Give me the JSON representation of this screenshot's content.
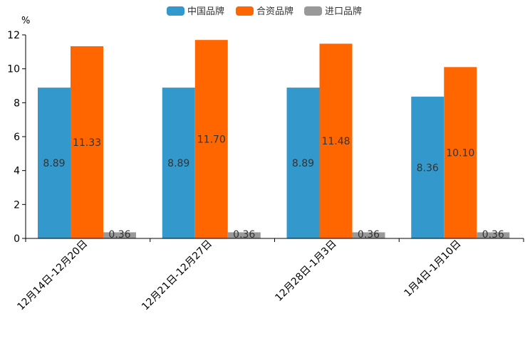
{
  "chart_data": {
    "type": "bar",
    "unit": "%",
    "categories": [
      "12月14日-12月20日",
      "12月21日-12月27日",
      "12月28日-1月3日",
      "1月4日-1月10日"
    ],
    "series": [
      {
        "name": "中国品牌",
        "color": "#3399cc",
        "values": [
          8.89,
          8.89,
          8.89,
          8.36
        ],
        "labels": [
          "8.89",
          "8.89",
          "8.89",
          "8.36"
        ]
      },
      {
        "name": "合资品牌",
        "color": "#ff6600",
        "values": [
          11.33,
          11.7,
          11.48,
          10.1
        ],
        "labels": [
          "11.33",
          "11.70",
          "11.48",
          "10.10"
        ]
      },
      {
        "name": "进口品牌",
        "color": "#999999",
        "values": [
          0.36,
          0.36,
          0.36,
          0.36
        ],
        "labels": [
          "0.36",
          "0.36",
          "0.36",
          "0.36"
        ]
      }
    ],
    "ylim": [
      0,
      12
    ],
    "yticks": [
      "0",
      "2",
      "4",
      "6",
      "8",
      "10",
      "12"
    ],
    "legend_position": "top-center",
    "grid": false
  }
}
